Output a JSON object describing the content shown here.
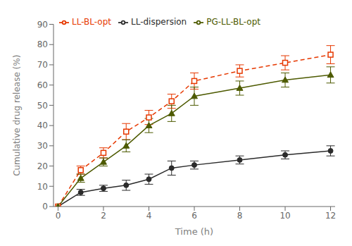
{
  "chart_data": {
    "type": "line",
    "x": [
      0,
      1,
      2,
      3,
      4,
      5,
      6,
      8,
      10,
      12
    ],
    "xlabel": "Time (h)",
    "ylabel": "Cumulative drug release (%)",
    "xlim": [
      -0.2,
      12.2
    ],
    "xticks": [
      0,
      2,
      4,
      6,
      8,
      10,
      12
    ],
    "ylim": [
      0,
      90
    ],
    "yticks": [
      0,
      10,
      20,
      30,
      40,
      50,
      60,
      70,
      80,
      90
    ],
    "grid": false,
    "legend": "upper left",
    "series": [
      {
        "name": "LL-dispersion",
        "color": "#2b2b2b",
        "marker": "circle",
        "line_style": "solid",
        "values": [
          0,
          7,
          9,
          10.5,
          13.5,
          19,
          20.5,
          23,
          25.5,
          27.5
        ],
        "errors": [
          0,
          1.5,
          1.5,
          2.5,
          2.5,
          3.5,
          2.0,
          2.0,
          2.0,
          2.5
        ]
      },
      {
        "name": "LL-BL-opt",
        "color": "#e63800",
        "marker": "open_square",
        "line_style": "dashed",
        "values": [
          0,
          18,
          26.5,
          37,
          44,
          52,
          62,
          67,
          71,
          75
        ],
        "errors": [
          0,
          2.0,
          2.5,
          4.0,
          3.5,
          3.5,
          4.0,
          3.0,
          3.5,
          4.5
        ]
      },
      {
        "name": "PG-LL-BL-opt",
        "color": "#4d5a00",
        "marker": "triangle",
        "line_style": "solid",
        "values": [
          0,
          14,
          22,
          30,
          40,
          46,
          54.5,
          58.5,
          62.5,
          65
        ],
        "errors": [
          0,
          2.0,
          2.0,
          3.0,
          3.5,
          4.0,
          4.5,
          3.5,
          3.5,
          4.0
        ]
      }
    ]
  }
}
